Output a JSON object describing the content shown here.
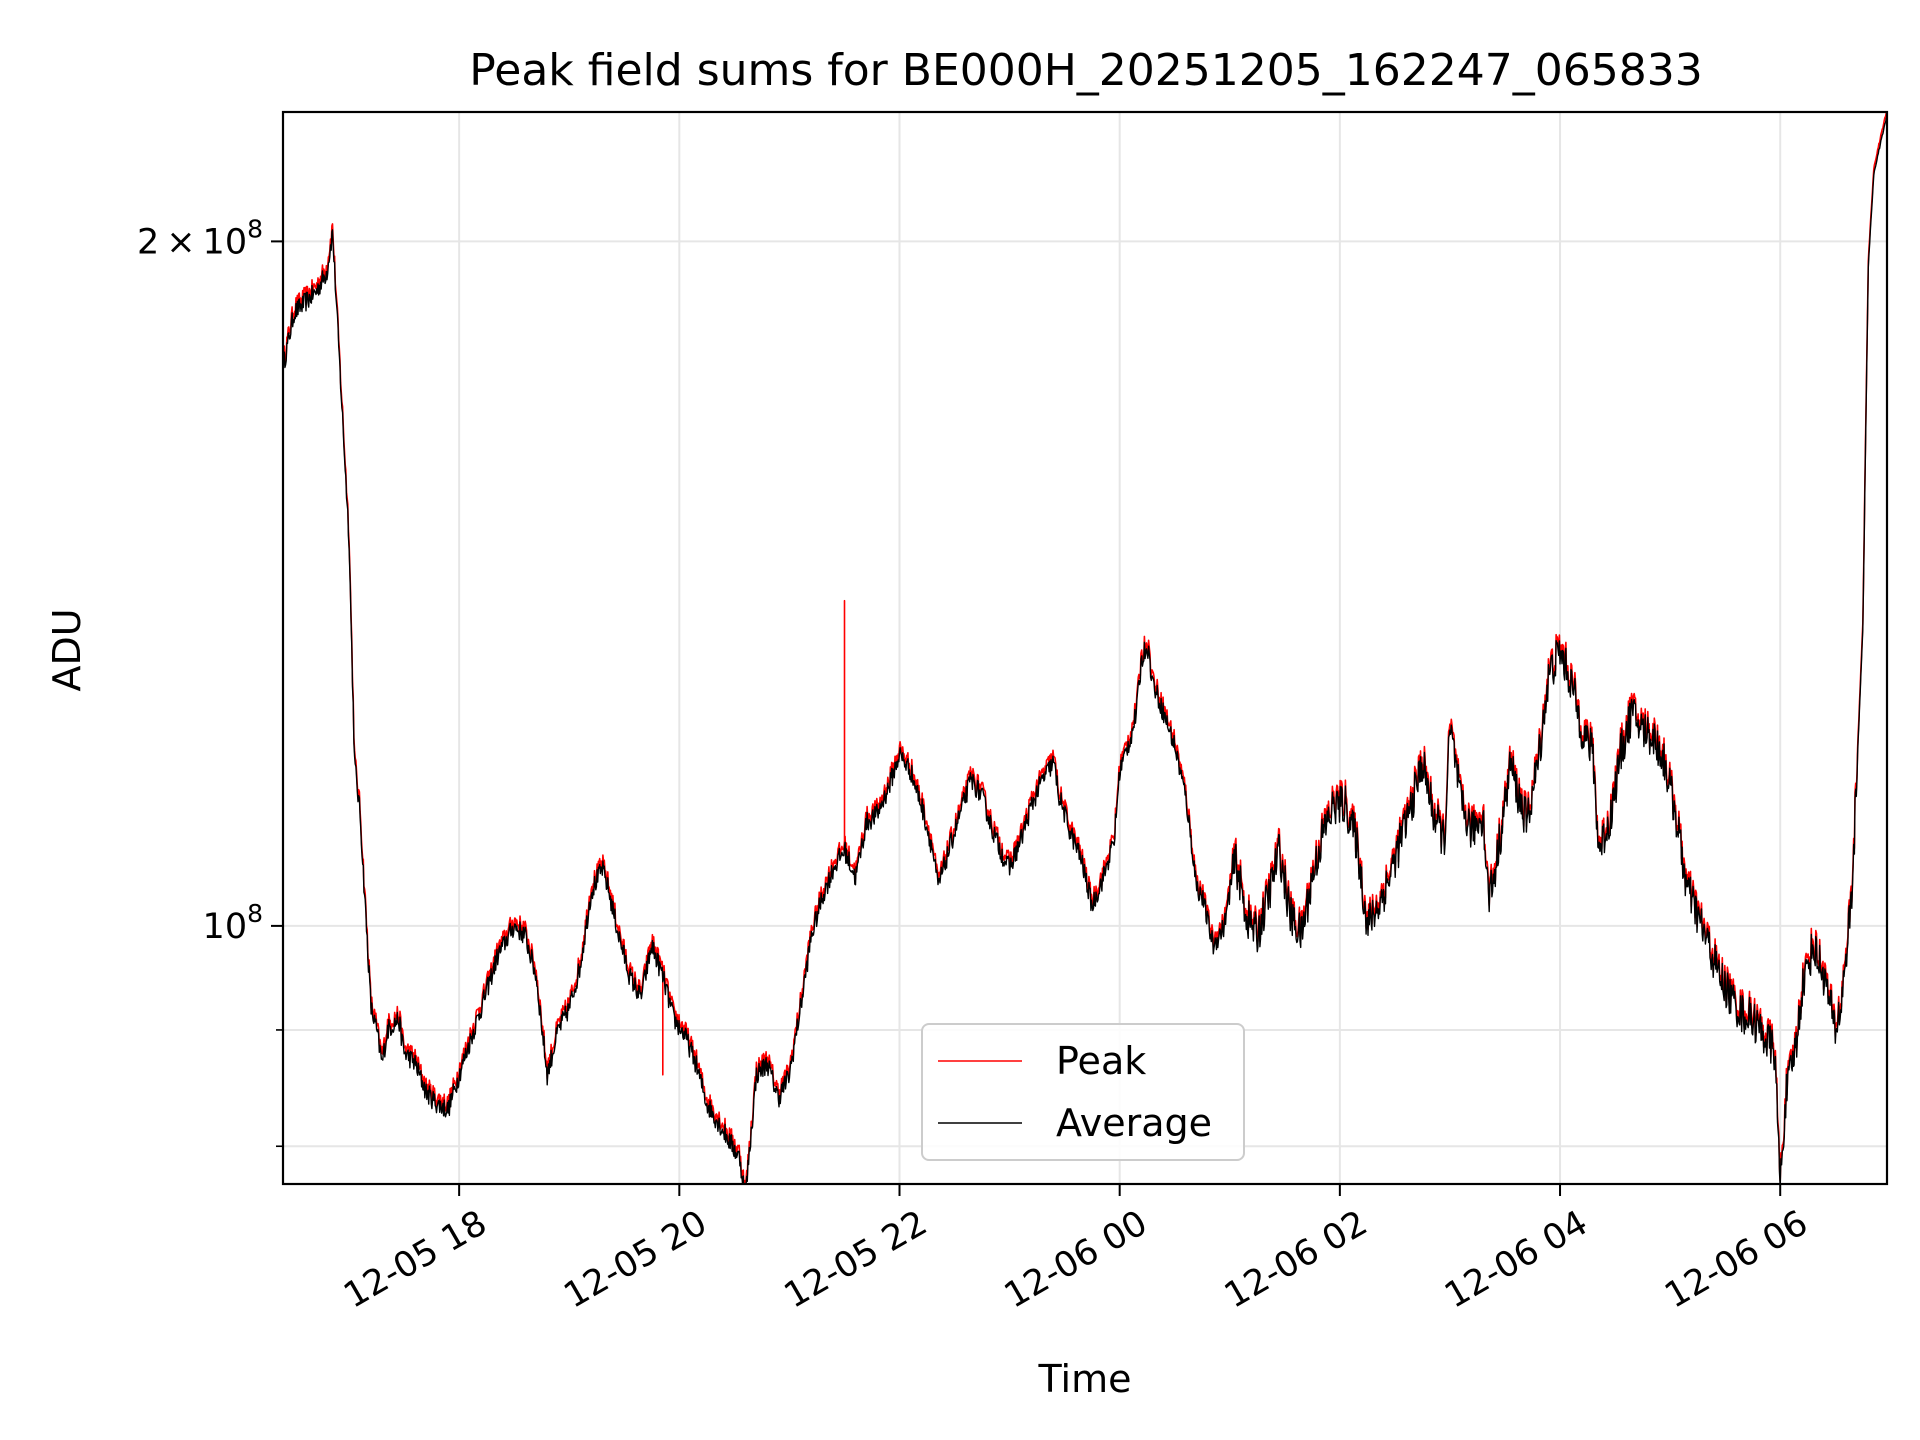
{
  "chart_data": {
    "type": "line",
    "title": "Peak field sums for BE000H_20251205_162247_065833",
    "xlabel": "Time",
    "ylabel": "ADU",
    "yscale": "log",
    "ylim": [
      77000000,
      228000000
    ],
    "xlim_hours": [
      16.4,
      30.97
    ],
    "x_unit": "hours since 2025-12-05 00:00",
    "grid": true,
    "legend_loc": "lower center",
    "x_ticks": [
      {
        "value": 18,
        "label": "12-05 18"
      },
      {
        "value": 20,
        "label": "12-05 20"
      },
      {
        "value": 22,
        "label": "12-05 22"
      },
      {
        "value": 24,
        "label": "12-06 00"
      },
      {
        "value": 26,
        "label": "12-06 02"
      },
      {
        "value": 28,
        "label": "12-06 04"
      },
      {
        "value": 30,
        "label": "12-06 06"
      }
    ],
    "y_ticks": [
      {
        "value": 100000000,
        "base": "10",
        "exp": "8",
        "coef": ""
      },
      {
        "value": 200000000,
        "base": "10",
        "exp": "8",
        "coef": "2"
      }
    ],
    "y_minor_ticks": [
      80000000,
      90000000
    ],
    "series": [
      {
        "name": "Peak",
        "color": "#ff0000",
        "offset": 1.006,
        "spikes": [
          [
            17.3,
            88500000
          ],
          [
            19.85,
            86000000
          ],
          [
            21.5,
            139000000
          ]
        ]
      },
      {
        "name": "Average",
        "color": "#000000",
        "offset": 1.0,
        "spikes": []
      }
    ],
    "average_points": [
      [
        16.4,
        176000000
      ],
      [
        16.5,
        186000000
      ],
      [
        16.7,
        190000000
      ],
      [
        16.8,
        194000000
      ],
      [
        16.85,
        202000000
      ],
      [
        16.9,
        182000000
      ],
      [
        17.0,
        148000000
      ],
      [
        17.05,
        118000000
      ],
      [
        17.1,
        112000000
      ],
      [
        17.2,
        92000000
      ],
      [
        17.25,
        90000000
      ],
      [
        17.3,
        87000000
      ],
      [
        17.35,
        90000000
      ],
      [
        17.45,
        91000000
      ],
      [
        17.5,
        88000000
      ],
      [
        17.6,
        87000000
      ],
      [
        17.7,
        84500000
      ],
      [
        17.8,
        83500000
      ],
      [
        17.9,
        83000000
      ],
      [
        18.0,
        86000000
      ],
      [
        18.1,
        89000000
      ],
      [
        18.2,
        92000000
      ],
      [
        18.35,
        97000000
      ],
      [
        18.5,
        100000000
      ],
      [
        18.6,
        99000000
      ],
      [
        18.7,
        95000000
      ],
      [
        18.8,
        86000000
      ],
      [
        18.9,
        90000000
      ],
      [
        19.0,
        92000000
      ],
      [
        19.1,
        96000000
      ],
      [
        19.2,
        103500000
      ],
      [
        19.3,
        106000000
      ],
      [
        19.35,
        104000000
      ],
      [
        19.45,
        99000000
      ],
      [
        19.55,
        95000000
      ],
      [
        19.65,
        93000000
      ],
      [
        19.75,
        98000000
      ],
      [
        19.85,
        95000000
      ],
      [
        19.95,
        91000000
      ],
      [
        20.05,
        89500000
      ],
      [
        20.15,
        87000000
      ],
      [
        20.25,
        83500000
      ],
      [
        20.35,
        82000000
      ],
      [
        20.45,
        80500000
      ],
      [
        20.55,
        79000000
      ],
      [
        20.6,
        76000000
      ],
      [
        20.7,
        86000000
      ],
      [
        20.8,
        87000000
      ],
      [
        20.9,
        84000000
      ],
      [
        21.0,
        86000000
      ],
      [
        21.1,
        92000000
      ],
      [
        21.2,
        99000000
      ],
      [
        21.3,
        103000000
      ],
      [
        21.4,
        106000000
      ],
      [
        21.5,
        108000000
      ],
      [
        21.6,
        105000000
      ],
      [
        21.7,
        111000000
      ],
      [
        21.8,
        112000000
      ],
      [
        21.9,
        115000000
      ],
      [
        22.0,
        119000000
      ],
      [
        22.1,
        117000000
      ],
      [
        22.2,
        113000000
      ],
      [
        22.3,
        108000000
      ],
      [
        22.35,
        104000000
      ],
      [
        22.5,
        110000000
      ],
      [
        22.6,
        114000000
      ],
      [
        22.65,
        116000000
      ],
      [
        22.75,
        114000000
      ],
      [
        22.85,
        110000000
      ],
      [
        22.95,
        107000000
      ],
      [
        23.0,
        106000000
      ],
      [
        23.1,
        109000000
      ],
      [
        23.2,
        113000000
      ],
      [
        23.3,
        116000000
      ],
      [
        23.4,
        118000000
      ],
      [
        23.45,
        114000000
      ],
      [
        23.55,
        110000000
      ],
      [
        23.65,
        107000000
      ],
      [
        23.75,
        102000000
      ],
      [
        23.85,
        105000000
      ],
      [
        23.95,
        109000000
      ],
      [
        24.0,
        117000000
      ],
      [
        24.1,
        121000000
      ],
      [
        24.15,
        124000000
      ],
      [
        24.2,
        131000000
      ],
      [
        24.25,
        133000000
      ],
      [
        24.3,
        128000000
      ],
      [
        24.4,
        124000000
      ],
      [
        24.5,
        120000000
      ],
      [
        24.6,
        114000000
      ],
      [
        24.7,
        104000000
      ],
      [
        24.75,
        103000000
      ],
      [
        24.85,
        98000000
      ],
      [
        24.95,
        100000000
      ],
      [
        25.05,
        107000000
      ],
      [
        25.15,
        101000000
      ],
      [
        25.25,
        99000000
      ],
      [
        25.35,
        103000000
      ],
      [
        25.45,
        108000000
      ],
      [
        25.55,
        101000000
      ],
      [
        25.65,
        99000000
      ],
      [
        25.75,
        105000000
      ],
      [
        25.85,
        110000000
      ],
      [
        25.95,
        113000000
      ],
      [
        26.05,
        113000000
      ],
      [
        26.15,
        109000000
      ],
      [
        26.25,
        100000000
      ],
      [
        26.35,
        102000000
      ],
      [
        26.45,
        105000000
      ],
      [
        26.55,
        109000000
      ],
      [
        26.65,
        113000000
      ],
      [
        26.75,
        118000000
      ],
      [
        26.85,
        112000000
      ],
      [
        26.95,
        109000000
      ],
      [
        27.0,
        122000000
      ],
      [
        27.05,
        118000000
      ],
      [
        27.1,
        113000000
      ],
      [
        27.2,
        110000000
      ],
      [
        27.3,
        112000000
      ],
      [
        27.35,
        103000000
      ],
      [
        27.4,
        105000000
      ],
      [
        27.5,
        113000000
      ],
      [
        27.55,
        118000000
      ],
      [
        27.6,
        115000000
      ],
      [
        27.7,
        111000000
      ],
      [
        27.8,
        118000000
      ],
      [
        27.9,
        129000000
      ],
      [
        28.0,
        132000000
      ],
      [
        28.1,
        128000000
      ],
      [
        28.2,
        122000000
      ],
      [
        28.3,
        119000000
      ],
      [
        28.35,
        108000000
      ],
      [
        28.45,
        111000000
      ],
      [
        28.55,
        119000000
      ],
      [
        28.65,
        124000000
      ],
      [
        28.75,
        122000000
      ],
      [
        28.85,
        121000000
      ],
      [
        28.95,
        118000000
      ],
      [
        29.05,
        112000000
      ],
      [
        29.15,
        104000000
      ],
      [
        29.25,
        101000000
      ],
      [
        29.35,
        98000000
      ],
      [
        29.45,
        95000000
      ],
      [
        29.55,
        93000000
      ],
      [
        29.65,
        91500000
      ],
      [
        29.75,
        91000000
      ],
      [
        29.85,
        89500000
      ],
      [
        29.95,
        88000000
      ],
      [
        30.0,
        77000000
      ],
      [
        30.05,
        84000000
      ],
      [
        30.15,
        89000000
      ],
      [
        30.2,
        94000000
      ],
      [
        30.3,
        98000000
      ],
      [
        30.4,
        95000000
      ],
      [
        30.5,
        90000000
      ],
      [
        30.55,
        92000000
      ],
      [
        30.65,
        103000000
      ],
      [
        30.75,
        135000000
      ],
      [
        30.8,
        195000000
      ],
      [
        30.85,
        214000000
      ],
      [
        30.92,
        222000000
      ],
      [
        30.97,
        227000000
      ]
    ]
  }
}
